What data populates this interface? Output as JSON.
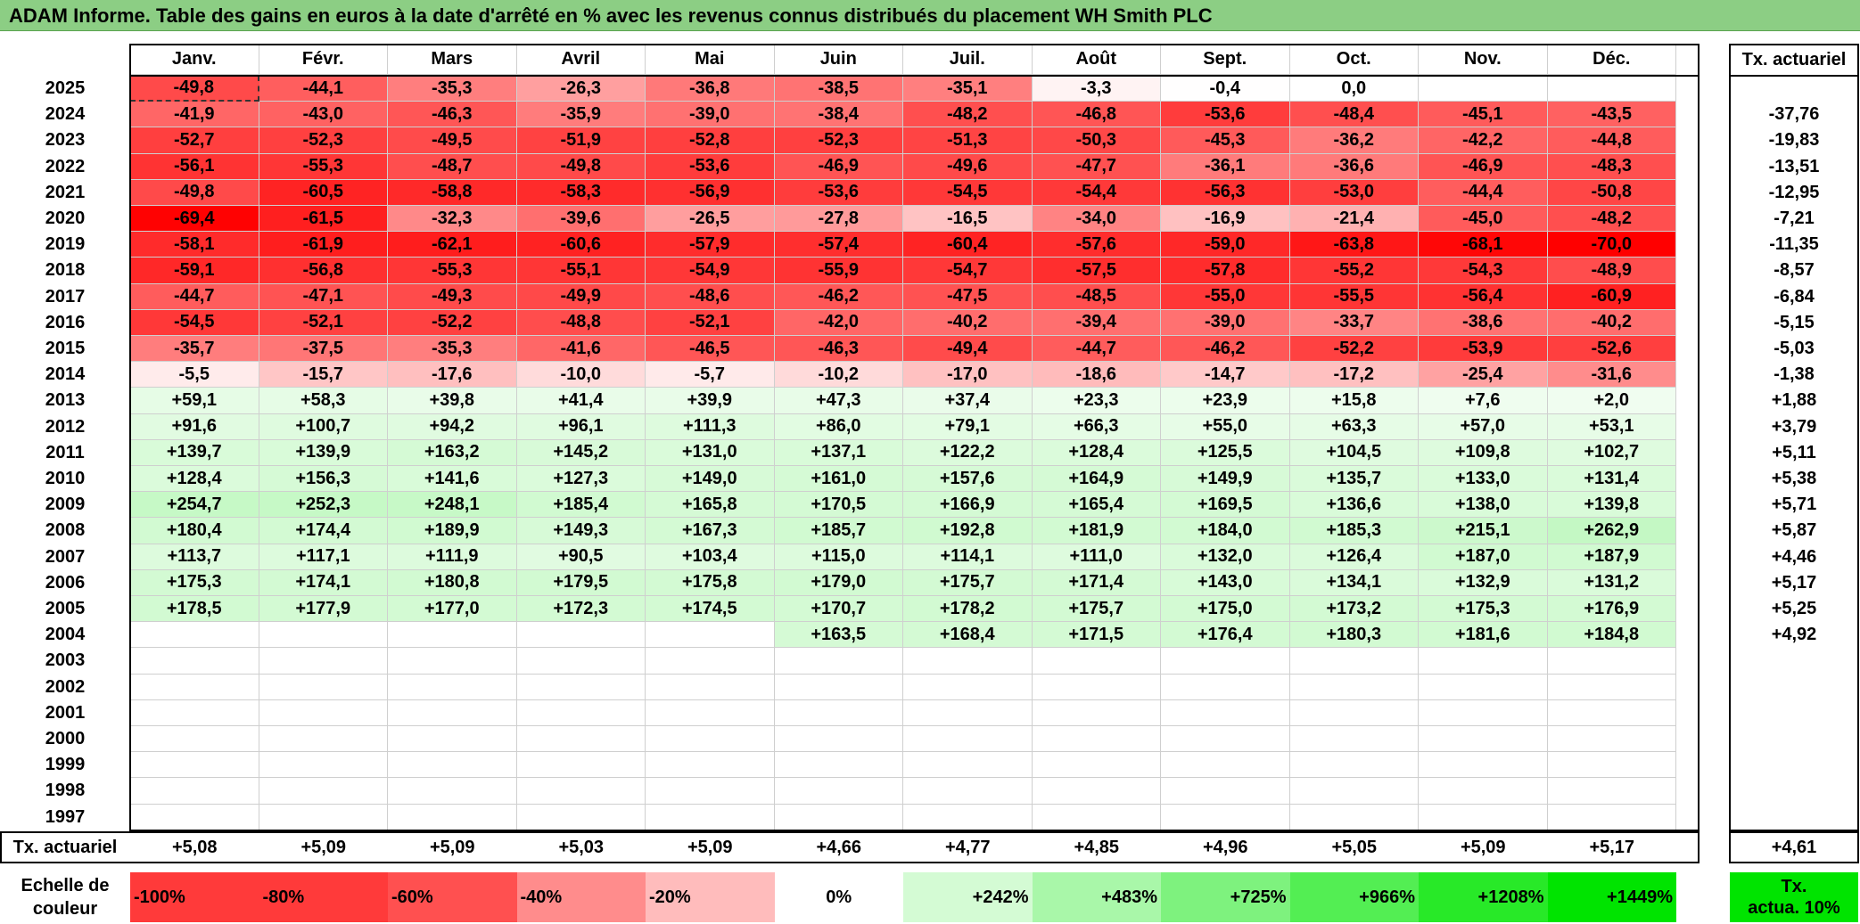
{
  "title": "ADAM Informe. Table des gains en euros à la date d'arrêté en % avec les revenus connus distribués du placement WH Smith PLC",
  "months": [
    "Janv.",
    "Févr.",
    "Mars",
    "Avril",
    "Mai",
    "Juin",
    "Juil.",
    "Août",
    "Sept.",
    "Oct.",
    "Nov.",
    "Déc."
  ],
  "tx_header": "Tx. actuariel",
  "rows": [
    {
      "year": "2025",
      "values": [
        "-49,8",
        "-44,1",
        "-35,3",
        "-26,3",
        "-36,8",
        "-38,5",
        "-35,1",
        "-3,3",
        "-0,4",
        "0,0",
        "",
        ""
      ],
      "tx": ""
    },
    {
      "year": "2024",
      "values": [
        "-41,9",
        "-43,0",
        "-46,3",
        "-35,9",
        "-39,0",
        "-38,4",
        "-48,2",
        "-46,8",
        "-53,6",
        "-48,4",
        "-45,1",
        "-43,5"
      ],
      "tx": "-37,76"
    },
    {
      "year": "2023",
      "values": [
        "-52,7",
        "-52,3",
        "-49,5",
        "-51,9",
        "-52,8",
        "-52,3",
        "-51,3",
        "-50,3",
        "-45,3",
        "-36,2",
        "-42,2",
        "-44,8"
      ],
      "tx": "-19,83"
    },
    {
      "year": "2022",
      "values": [
        "-56,1",
        "-55,3",
        "-48,7",
        "-49,8",
        "-53,6",
        "-46,9",
        "-49,6",
        "-47,7",
        "-36,1",
        "-36,6",
        "-46,9",
        "-48,3"
      ],
      "tx": "-13,51"
    },
    {
      "year": "2021",
      "values": [
        "-49,8",
        "-60,5",
        "-58,8",
        "-58,3",
        "-56,9",
        "-53,6",
        "-54,5",
        "-54,4",
        "-56,3",
        "-53,0",
        "-44,4",
        "-50,8"
      ],
      "tx": "-12,95"
    },
    {
      "year": "2020",
      "values": [
        "-69,4",
        "-61,5",
        "-32,3",
        "-39,6",
        "-26,5",
        "-27,8",
        "-16,5",
        "-34,0",
        "-16,9",
        "-21,4",
        "-45,0",
        "-48,2"
      ],
      "tx": "-7,21"
    },
    {
      "year": "2019",
      "values": [
        "-58,1",
        "-61,9",
        "-62,1",
        "-60,6",
        "-57,9",
        "-57,4",
        "-60,4",
        "-57,6",
        "-59,0",
        "-63,8",
        "-68,1",
        "-70,0"
      ],
      "tx": "-11,35"
    },
    {
      "year": "2018",
      "values": [
        "-59,1",
        "-56,8",
        "-55,3",
        "-55,1",
        "-54,9",
        "-55,9",
        "-54,7",
        "-57,5",
        "-57,8",
        "-55,2",
        "-54,3",
        "-48,9"
      ],
      "tx": "-8,57"
    },
    {
      "year": "2017",
      "values": [
        "-44,7",
        "-47,1",
        "-49,3",
        "-49,9",
        "-48,6",
        "-46,2",
        "-47,5",
        "-48,5",
        "-55,0",
        "-55,5",
        "-56,4",
        "-60,9"
      ],
      "tx": "-6,84"
    },
    {
      "year": "2016",
      "values": [
        "-54,5",
        "-52,1",
        "-52,2",
        "-48,8",
        "-52,1",
        "-42,0",
        "-40,2",
        "-39,4",
        "-39,0",
        "-33,7",
        "-38,6",
        "-40,2"
      ],
      "tx": "-5,15"
    },
    {
      "year": "2015",
      "values": [
        "-35,7",
        "-37,5",
        "-35,3",
        "-41,6",
        "-46,5",
        "-46,3",
        "-49,4",
        "-44,7",
        "-46,2",
        "-52,2",
        "-53,9",
        "-52,6"
      ],
      "tx": "-5,03"
    },
    {
      "year": "2014",
      "values": [
        "-5,5",
        "-15,7",
        "-17,6",
        "-10,0",
        "-5,7",
        "-10,2",
        "-17,0",
        "-18,6",
        "-14,7",
        "-17,2",
        "-25,4",
        "-31,6"
      ],
      "tx": "-1,38"
    },
    {
      "year": "2013",
      "values": [
        "+59,1",
        "+58,3",
        "+39,8",
        "+41,4",
        "+39,9",
        "+47,3",
        "+37,4",
        "+23,3",
        "+23,9",
        "+15,8",
        "+7,6",
        "+2,0"
      ],
      "tx": "+1,88"
    },
    {
      "year": "2012",
      "values": [
        "+91,6",
        "+100,7",
        "+94,2",
        "+96,1",
        "+111,3",
        "+86,0",
        "+79,1",
        "+66,3",
        "+55,0",
        "+63,3",
        "+57,0",
        "+53,1"
      ],
      "tx": "+3,79"
    },
    {
      "year": "2011",
      "values": [
        "+139,7",
        "+139,9",
        "+163,2",
        "+145,2",
        "+131,0",
        "+137,1",
        "+122,2",
        "+128,4",
        "+125,5",
        "+104,5",
        "+109,8",
        "+102,7"
      ],
      "tx": "+5,11"
    },
    {
      "year": "2010",
      "values": [
        "+128,4",
        "+156,3",
        "+141,6",
        "+127,3",
        "+149,0",
        "+161,0",
        "+157,6",
        "+164,9",
        "+149,9",
        "+135,7",
        "+133,0",
        "+131,4"
      ],
      "tx": "+5,38"
    },
    {
      "year": "2009",
      "values": [
        "+254,7",
        "+252,3",
        "+248,1",
        "+185,4",
        "+165,8",
        "+170,5",
        "+166,9",
        "+165,4",
        "+169,5",
        "+136,6",
        "+138,0",
        "+139,8"
      ],
      "tx": "+5,71"
    },
    {
      "year": "2008",
      "values": [
        "+180,4",
        "+174,4",
        "+189,9",
        "+149,3",
        "+167,3",
        "+185,7",
        "+192,8",
        "+181,9",
        "+184,0",
        "+185,3",
        "+215,1",
        "+262,9"
      ],
      "tx": "+5,87"
    },
    {
      "year": "2007",
      "values": [
        "+113,7",
        "+117,1",
        "+111,9",
        "+90,5",
        "+103,4",
        "+115,0",
        "+114,1",
        "+111,0",
        "+132,0",
        "+126,4",
        "+187,0",
        "+187,9"
      ],
      "tx": "+4,46"
    },
    {
      "year": "2006",
      "values": [
        "+175,3",
        "+174,1",
        "+180,8",
        "+179,5",
        "+175,8",
        "+179,0",
        "+175,7",
        "+171,4",
        "+143,0",
        "+134,1",
        "+132,9",
        "+131,2"
      ],
      "tx": "+5,17"
    },
    {
      "year": "2005",
      "values": [
        "+178,5",
        "+177,9",
        "+177,0",
        "+172,3",
        "+174,5",
        "+170,7",
        "+178,2",
        "+175,7",
        "+175,0",
        "+173,2",
        "+175,3",
        "+176,9"
      ],
      "tx": "+5,25"
    },
    {
      "year": "2004",
      "values": [
        "",
        "",
        "",
        "",
        "",
        "+163,5",
        "+168,4",
        "+171,5",
        "+176,4",
        "+180,3",
        "+181,6",
        "+184,8"
      ],
      "tx": "+4,92"
    },
    {
      "year": "2003",
      "values": [
        "",
        "",
        "",
        "",
        "",
        "",
        "",
        "",
        "",
        "",
        "",
        ""
      ],
      "tx": ""
    },
    {
      "year": "2002",
      "values": [
        "",
        "",
        "",
        "",
        "",
        "",
        "",
        "",
        "",
        "",
        "",
        ""
      ],
      "tx": ""
    },
    {
      "year": "2001",
      "values": [
        "",
        "",
        "",
        "",
        "",
        "",
        "",
        "",
        "",
        "",
        "",
        ""
      ],
      "tx": ""
    },
    {
      "year": "2000",
      "values": [
        "",
        "",
        "",
        "",
        "",
        "",
        "",
        "",
        "",
        "",
        "",
        ""
      ],
      "tx": ""
    },
    {
      "year": "1999",
      "values": [
        "",
        "",
        "",
        "",
        "",
        "",
        "",
        "",
        "",
        "",
        "",
        ""
      ],
      "tx": ""
    },
    {
      "year": "1998",
      "values": [
        "",
        "",
        "",
        "",
        "",
        "",
        "",
        "",
        "",
        "",
        "",
        ""
      ],
      "tx": ""
    },
    {
      "year": "1997",
      "values": [
        "",
        "",
        "",
        "",
        "",
        "",
        "",
        "",
        "",
        "",
        "",
        ""
      ],
      "tx": ""
    }
  ],
  "footer": {
    "label": "Tx. actuariel",
    "values": [
      "+5,08",
      "+5,09",
      "+5,09",
      "+5,03",
      "+5,09",
      "+4,66",
      "+4,77",
      "+4,85",
      "+4,96",
      "+5,05",
      "+5,09",
      "+5,17"
    ],
    "total": "+4,61"
  },
  "legend": {
    "label_line1": "Echelle de",
    "label_line2": "couleur",
    "steps": [
      {
        "text": "-100%",
        "color": "#ff3a3a"
      },
      {
        "text": "-80%",
        "color": "#ff3a3a"
      },
      {
        "text": "-60%",
        "color": "#ff5050"
      },
      {
        "text": "-40%",
        "color": "#ff8c8c"
      },
      {
        "text": "-20%",
        "color": "#ffbcbc"
      },
      {
        "text": "0%",
        "color": "#ffffff"
      },
      {
        "text": "+242%",
        "color": "#d4fbd4"
      },
      {
        "text": "+483%",
        "color": "#a9f7a9"
      },
      {
        "text": "+725%",
        "color": "#7ef27e"
      },
      {
        "text": "+966%",
        "color": "#53ee53"
      },
      {
        "text": "+1208%",
        "color": "#28e928"
      },
      {
        "text": "+1449%",
        "color": "#00e400"
      }
    ],
    "tx_line1": "Tx.",
    "tx_line2": "actua. 10%",
    "tx_color": "#00e400"
  },
  "colors": {
    "title_bg": "#8cce84",
    "negative_max": "#ff0000",
    "positive_max": "#00e400"
  }
}
